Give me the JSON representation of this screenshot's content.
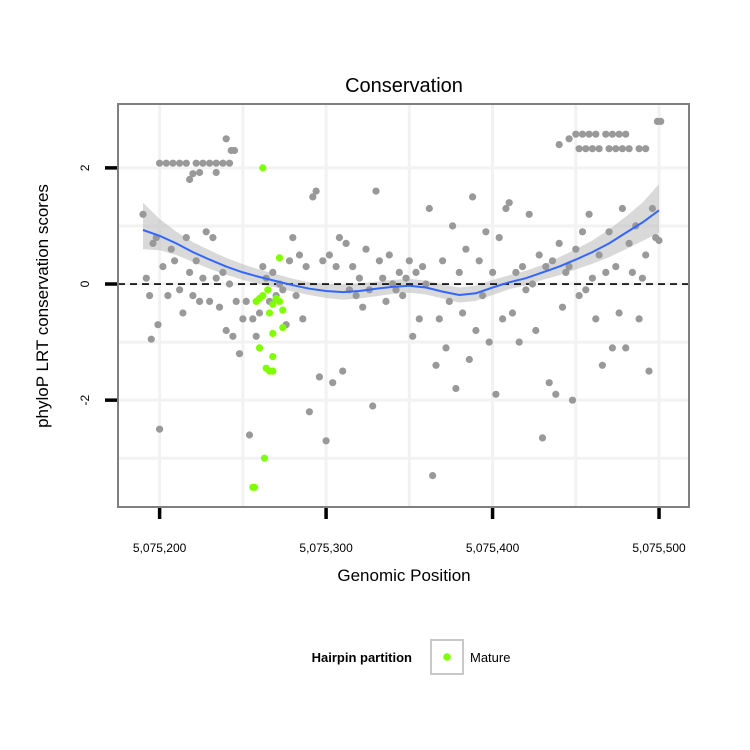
{
  "chart_data": {
    "type": "scatter",
    "title": "Conservation",
    "xlabel": "Genomic Position",
    "ylabel": "phyloP LRT conservation scores",
    "xlim": [
      5075175,
      5075518
    ],
    "ylim": [
      -3.84,
      3.1
    ],
    "x_ticks": [
      5075200,
      5075300,
      5075400,
      5075500
    ],
    "x_tick_labels": [
      "5,075,200",
      "5,075,300",
      "5,075,400",
      "5,075,500"
    ],
    "y_ticks": [
      -2,
      0,
      2
    ],
    "y_tick_labels": [
      "-2",
      "0",
      "2"
    ],
    "reference_line": 0,
    "colors": {
      "points": "#999999",
      "mature": "#7fff00",
      "smooth": "#3366ff",
      "ribbon": "#bfbfbf",
      "panel_border": "#7f7f7f",
      "grid": "#f2f2f2"
    },
    "legend": {
      "title": "Hairpin partition",
      "entries": [
        "Mature"
      ],
      "position": "bottom"
    },
    "smooth": {
      "x": [
        5075190,
        5075200,
        5075210,
        5075220,
        5075230,
        5075240,
        5075250,
        5075260,
        5075270,
        5075280,
        5075290,
        5075300,
        5075310,
        5075320,
        5075330,
        5075340,
        5075350,
        5075360,
        5075370,
        5075380,
        5075390,
        5075400,
        5075410,
        5075420,
        5075430,
        5075440,
        5075450,
        5075460,
        5075470,
        5075480,
        5075490,
        5075500
      ],
      "y": [
        0.93,
        0.83,
        0.7,
        0.55,
        0.42,
        0.3,
        0.2,
        0.12,
        0.05,
        -0.02,
        -0.08,
        -0.12,
        -0.14,
        -0.12,
        -0.08,
        -0.05,
        -0.03,
        -0.06,
        -0.13,
        -0.19,
        -0.16,
        -0.06,
        0.03,
        0.1,
        0.2,
        0.3,
        0.42,
        0.55,
        0.7,
        0.88,
        1.06,
        1.27
      ],
      "lower": [
        0.6,
        0.58,
        0.5,
        0.38,
        0.26,
        0.16,
        0.07,
        0.0,
        -0.06,
        -0.13,
        -0.19,
        -0.24,
        -0.27,
        -0.25,
        -0.21,
        -0.17,
        -0.15,
        -0.18,
        -0.25,
        -0.32,
        -0.29,
        -0.19,
        -0.09,
        -0.02,
        0.07,
        0.15,
        0.25,
        0.35,
        0.46,
        0.6,
        0.74,
        0.88
      ],
      "upper": [
        1.4,
        1.12,
        0.9,
        0.72,
        0.58,
        0.45,
        0.34,
        0.25,
        0.17,
        0.09,
        0.03,
        0.0,
        -0.01,
        0.01,
        0.04,
        0.07,
        0.09,
        0.06,
        -0.01,
        -0.06,
        -0.03,
        0.07,
        0.15,
        0.23,
        0.33,
        0.46,
        0.6,
        0.75,
        0.94,
        1.16,
        1.4,
        1.72
      ]
    },
    "points_other": [
      [
        5075190,
        1.2
      ],
      [
        5075192,
        0.1
      ],
      [
        5075194,
        -0.2
      ],
      [
        5075196,
        0.7
      ],
      [
        5075198,
        0.8
      ],
      [
        5075199,
        -0.7
      ],
      [
        5075195,
        -0.95
      ],
      [
        5075200,
        -2.5
      ],
      [
        5075200,
        2.08
      ],
      [
        5075204,
        2.08
      ],
      [
        5075208,
        2.08
      ],
      [
        5075212,
        2.08
      ],
      [
        5075216,
        2.08
      ],
      [
        5075222,
        2.08
      ],
      [
        5075226,
        2.08
      ],
      [
        5075230,
        2.08
      ],
      [
        5075234,
        2.08
      ],
      [
        5075238,
        2.08
      ],
      [
        5075242,
        2.08
      ],
      [
        5075218,
        1.8
      ],
      [
        5075224,
        1.92
      ],
      [
        5075234,
        1.92
      ],
      [
        5075220,
        1.9
      ],
      [
        5075240,
        2.5
      ],
      [
        5075243,
        2.3
      ],
      [
        5075245,
        2.3
      ],
      [
        5075202,
        0.3
      ],
      [
        5075205,
        -0.2
      ],
      [
        5075207,
        0.6
      ],
      [
        5075209,
        0.4
      ],
      [
        5075212,
        -0.1
      ],
      [
        5075214,
        -0.5
      ],
      [
        5075216,
        0.8
      ],
      [
        5075218,
        0.2
      ],
      [
        5075220,
        -0.2
      ],
      [
        5075222,
        0.4
      ],
      [
        5075224,
        -0.3
      ],
      [
        5075226,
        0.1
      ],
      [
        5075228,
        0.9
      ],
      [
        5075230,
        -0.3
      ],
      [
        5075232,
        0.8
      ],
      [
        5075234,
        0.1
      ],
      [
        5075236,
        -0.4
      ],
      [
        5075238,
        0.2
      ],
      [
        5075240,
        -0.8
      ],
      [
        5075242,
        0.0
      ],
      [
        5075244,
        -0.9
      ],
      [
        5075246,
        -0.3
      ],
      [
        5075248,
        -1.2
      ],
      [
        5075250,
        -0.6
      ],
      [
        5075252,
        -0.3
      ],
      [
        5075254,
        -2.6
      ],
      [
        5075256,
        -0.6
      ],
      [
        5075258,
        -0.9
      ],
      [
        5075260,
        -0.5
      ],
      [
        5075262,
        0.3
      ],
      [
        5075264,
        0.1
      ],
      [
        5075266,
        -0.3
      ],
      [
        5075268,
        0.2
      ],
      [
        5075270,
        -0.2
      ],
      [
        5075272,
        0.0
      ],
      [
        5075274,
        -0.1
      ],
      [
        5075276,
        -0.7
      ],
      [
        5075278,
        0.4
      ],
      [
        5075280,
        0.8
      ],
      [
        5075282,
        -0.2
      ],
      [
        5075284,
        0.5
      ],
      [
        5075286,
        -0.6
      ],
      [
        5075288,
        0.3
      ],
      [
        5075290,
        -2.2
      ],
      [
        5075292,
        1.5
      ],
      [
        5075294,
        1.6
      ],
      [
        5075296,
        -1.6
      ],
      [
        5075298,
        0.4
      ],
      [
        5075300,
        -2.7
      ],
      [
        5075302,
        0.5
      ],
      [
        5075304,
        -1.7
      ],
      [
        5075306,
        0.3
      ],
      [
        5075308,
        0.8
      ],
      [
        5075310,
        -1.5
      ],
      [
        5075312,
        0.7
      ],
      [
        5075314,
        -0.1
      ],
      [
        5075316,
        0.3
      ],
      [
        5075318,
        -0.2
      ],
      [
        5075320,
        0.1
      ],
      [
        5075322,
        -0.4
      ],
      [
        5075324,
        0.6
      ],
      [
        5075326,
        -0.1
      ],
      [
        5075328,
        -2.1
      ],
      [
        5075330,
        1.6
      ],
      [
        5075332,
        0.4
      ],
      [
        5075334,
        0.1
      ],
      [
        5075336,
        -0.3
      ],
      [
        5075338,
        0.5
      ],
      [
        5075340,
        0.0
      ],
      [
        5075342,
        -0.1
      ],
      [
        5075344,
        0.2
      ],
      [
        5075346,
        -0.2
      ],
      [
        5075348,
        0.1
      ],
      [
        5075350,
        0.4
      ],
      [
        5075352,
        -0.9
      ],
      [
        5075354,
        0.2
      ],
      [
        5075356,
        -0.6
      ],
      [
        5075358,
        0.3
      ],
      [
        5075360,
        0.0
      ],
      [
        5075362,
        1.3
      ],
      [
        5075364,
        -3.3
      ],
      [
        5075366,
        -1.4
      ],
      [
        5075368,
        -0.6
      ],
      [
        5075370,
        0.4
      ],
      [
        5075372,
        -1.1
      ],
      [
        5075374,
        -0.3
      ],
      [
        5075376,
        1.0
      ],
      [
        5075378,
        -1.8
      ],
      [
        5075380,
        0.2
      ],
      [
        5075382,
        -0.5
      ],
      [
        5075384,
        0.6
      ],
      [
        5075386,
        -1.3
      ],
      [
        5075388,
        1.5
      ],
      [
        5075390,
        -0.8
      ],
      [
        5075392,
        0.4
      ],
      [
        5075394,
        -0.2
      ],
      [
        5075396,
        0.9
      ],
      [
        5075398,
        -1.0
      ],
      [
        5075400,
        0.2
      ],
      [
        5075402,
        -1.9
      ],
      [
        5075404,
        0.8
      ],
      [
        5075406,
        -0.6
      ],
      [
        5075408,
        1.3
      ],
      [
        5075410,
        1.4
      ],
      [
        5075412,
        -0.5
      ],
      [
        5075414,
        0.2
      ],
      [
        5075416,
        -1.0
      ],
      [
        5075418,
        0.3
      ],
      [
        5075420,
        -0.1
      ],
      [
        5075422,
        1.2
      ],
      [
        5075424,
        0.0
      ],
      [
        5075426,
        -0.8
      ],
      [
        5075428,
        0.5
      ],
      [
        5075430,
        -2.65
      ],
      [
        5075432,
        0.3
      ],
      [
        5075434,
        -1.7
      ],
      [
        5075436,
        0.4
      ],
      [
        5075438,
        -1.9
      ],
      [
        5075440,
        0.7
      ],
      [
        5075442,
        -0.4
      ],
      [
        5075444,
        0.2
      ],
      [
        5075446,
        0.3
      ],
      [
        5075448,
        -2.0
      ],
      [
        5075450,
        0.6
      ],
      [
        5075452,
        -0.2
      ],
      [
        5075454,
        0.9
      ],
      [
        5075456,
        -0.1
      ],
      [
        5075458,
        1.2
      ],
      [
        5075460,
        0.1
      ],
      [
        5075462,
        -0.6
      ],
      [
        5075464,
        0.5
      ],
      [
        5075466,
        -1.4
      ],
      [
        5075468,
        0.2
      ],
      [
        5075470,
        0.9
      ],
      [
        5075472,
        -1.1
      ],
      [
        5075474,
        0.3
      ],
      [
        5075476,
        -0.5
      ],
      [
        5075478,
        1.3
      ],
      [
        5075480,
        -1.1
      ],
      [
        5075482,
        0.7
      ],
      [
        5075484,
        0.2
      ],
      [
        5075486,
        1.0
      ],
      [
        5075488,
        -0.6
      ],
      [
        5075490,
        0.1
      ],
      [
        5075492,
        0.5
      ],
      [
        5075494,
        -1.5
      ],
      [
        5075496,
        1.3
      ],
      [
        5075498,
        0.8
      ],
      [
        5075500,
        0.75
      ],
      [
        5075501,
        2.8
      ],
      [
        5075499,
        2.8
      ],
      [
        5075440,
        2.4
      ],
      [
        5075446,
        2.5
      ],
      [
        5075450,
        2.58
      ],
      [
        5075454,
        2.58
      ],
      [
        5075458,
        2.58
      ],
      [
        5075462,
        2.58
      ],
      [
        5075468,
        2.58
      ],
      [
        5075472,
        2.58
      ],
      [
        5075476,
        2.58
      ],
      [
        5075480,
        2.58
      ],
      [
        5075452,
        2.33
      ],
      [
        5075456,
        2.33
      ],
      [
        5075460,
        2.33
      ],
      [
        5075464,
        2.33
      ],
      [
        5075470,
        2.33
      ],
      [
        5075474,
        2.33
      ],
      [
        5075478,
        2.33
      ],
      [
        5075482,
        2.33
      ],
      [
        5075488,
        2.33
      ],
      [
        5075492,
        2.33
      ]
    ],
    "points_mature": [
      [
        5075262,
        2.0
      ],
      [
        5075272,
        0.45
      ],
      [
        5075265,
        -0.1
      ],
      [
        5075262,
        -0.2
      ],
      [
        5075260,
        -0.25
      ],
      [
        5075258,
        -0.3
      ],
      [
        5075270,
        -0.25
      ],
      [
        5075272,
        -0.3
      ],
      [
        5075268,
        -0.35
      ],
      [
        5075274,
        -0.45
      ],
      [
        5075266,
        -0.5
      ],
      [
        5075274,
        -0.75
      ],
      [
        5075268,
        -0.85
      ],
      [
        5075260,
        -1.1
      ],
      [
        5075268,
        -1.25
      ],
      [
        5075264,
        -1.45
      ],
      [
        5075268,
        -1.5
      ],
      [
        5075266,
        -1.5
      ],
      [
        5075263,
        -3.0
      ],
      [
        5075257,
        -3.5
      ],
      [
        5075256,
        -3.5
      ]
    ]
  }
}
